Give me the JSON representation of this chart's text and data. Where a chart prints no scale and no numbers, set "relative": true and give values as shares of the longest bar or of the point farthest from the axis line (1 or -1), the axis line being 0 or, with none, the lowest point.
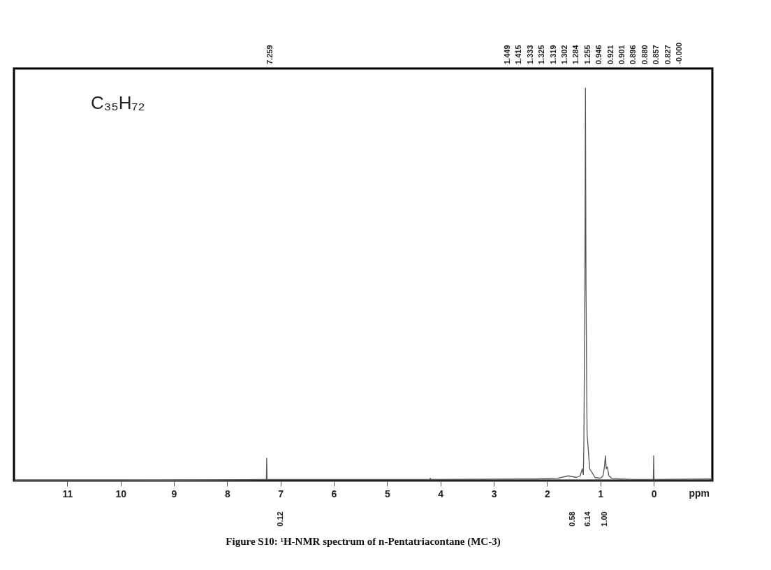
{
  "chart_data": {
    "type": "line",
    "relative": true,
    "title": "Figure S10: ¹H-NMR spectrum of n-Pentatriacontane (MC-3)",
    "xlabel": "ppm",
    "xlim": [
      12,
      -1.1
    ],
    "xticks": [
      11,
      10,
      9,
      8,
      7,
      6,
      5,
      4,
      3,
      2,
      1,
      0
    ],
    "tick_labels": "x",
    "series": [
      {
        "color": "#555555",
        "x": [
          12,
          10,
          8,
          7.3,
          7.265,
          7.259,
          7.253,
          6,
          4.2,
          4.19,
          4.18,
          2.2,
          1.8,
          1.6,
          1.45,
          1.38,
          1.34,
          1.32,
          1.31,
          1.29,
          1.28,
          1.27,
          1.25,
          1.2,
          1.1,
          1.0,
          0.95,
          0.92,
          0.905,
          0.89,
          0.87,
          0.84,
          0.78,
          0.4,
          0.006,
          0,
          -0.006,
          -1.1
        ],
        "values": [
          0,
          0,
          0.002,
          0.003,
          0.003,
          0.057,
          0.003,
          0.003,
          0.003,
          0.006,
          0.003,
          0.004,
          0.006,
          0.012,
          0.008,
          0.012,
          0.03,
          0.015,
          0.09,
          0.5,
          1.0,
          0.5,
          0.12,
          0.03,
          0.008,
          0.006,
          0.012,
          0.04,
          0.063,
          0.03,
          0.035,
          0.012,
          0.005,
          0.003,
          0.003,
          0.063,
          0.003,
          0.004
        ]
      }
    ],
    "annotations": [
      "C₃₅H₇₂",
      "7.259",
      "1.449",
      "1.415",
      "1.333",
      "1.325",
      "1.319",
      "1.302",
      "1.284",
      "1.255",
      "0.946",
      "0.921",
      "0.901",
      "0.896",
      "0.880",
      "0.857",
      "0.827",
      "-0.000",
      "0.12",
      "0.58",
      "6.14",
      "1.00"
    ]
  }
}
